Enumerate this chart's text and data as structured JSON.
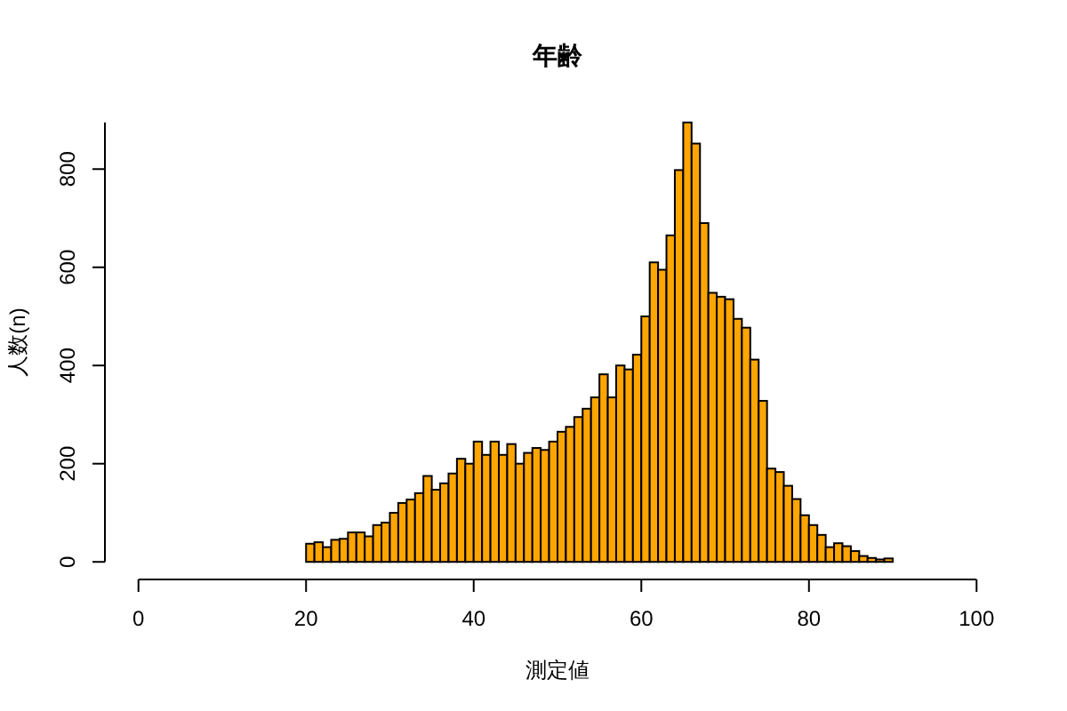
{
  "chart_data": {
    "type": "histogram",
    "title": "年齢",
    "xlabel": "測定値",
    "ylabel": "人数(n)",
    "bins": [
      20,
      21,
      22,
      23,
      24,
      25,
      26,
      27,
      28,
      29,
      30,
      31,
      32,
      33,
      34,
      35,
      36,
      37,
      38,
      39,
      40,
      41,
      42,
      43,
      44,
      45,
      46,
      47,
      48,
      49,
      50,
      51,
      52,
      53,
      54,
      55,
      56,
      57,
      58,
      59,
      60,
      61,
      62,
      63,
      64,
      65,
      66,
      67,
      68,
      69,
      70,
      71,
      72,
      73,
      74,
      75,
      76,
      77,
      78,
      79,
      80,
      81,
      82,
      83,
      84,
      85,
      86,
      87,
      88,
      89,
      90
    ],
    "values": [
      37,
      40,
      30,
      45,
      47,
      60,
      60,
      52,
      75,
      80,
      100,
      120,
      127,
      140,
      175,
      147,
      160,
      180,
      210,
      200,
      245,
      218,
      245,
      218,
      240,
      200,
      222,
      232,
      228,
      245,
      265,
      275,
      295,
      312,
      335,
      382,
      335,
      400,
      392,
      422,
      500,
      610,
      595,
      665,
      798,
      895,
      852,
      690,
      548,
      540,
      535,
      495,
      477,
      412,
      328,
      190,
      183,
      155,
      128,
      95,
      75,
      55,
      30,
      38,
      32,
      22,
      12,
      8,
      5,
      7
    ],
    "color": "#ffa500",
    "xlim": [
      0,
      100
    ],
    "ylim": [
      0,
      895
    ],
    "xticks": [
      0,
      20,
      40,
      60,
      80,
      100
    ],
    "yticks": [
      0,
      200,
      400,
      600,
      800
    ]
  }
}
